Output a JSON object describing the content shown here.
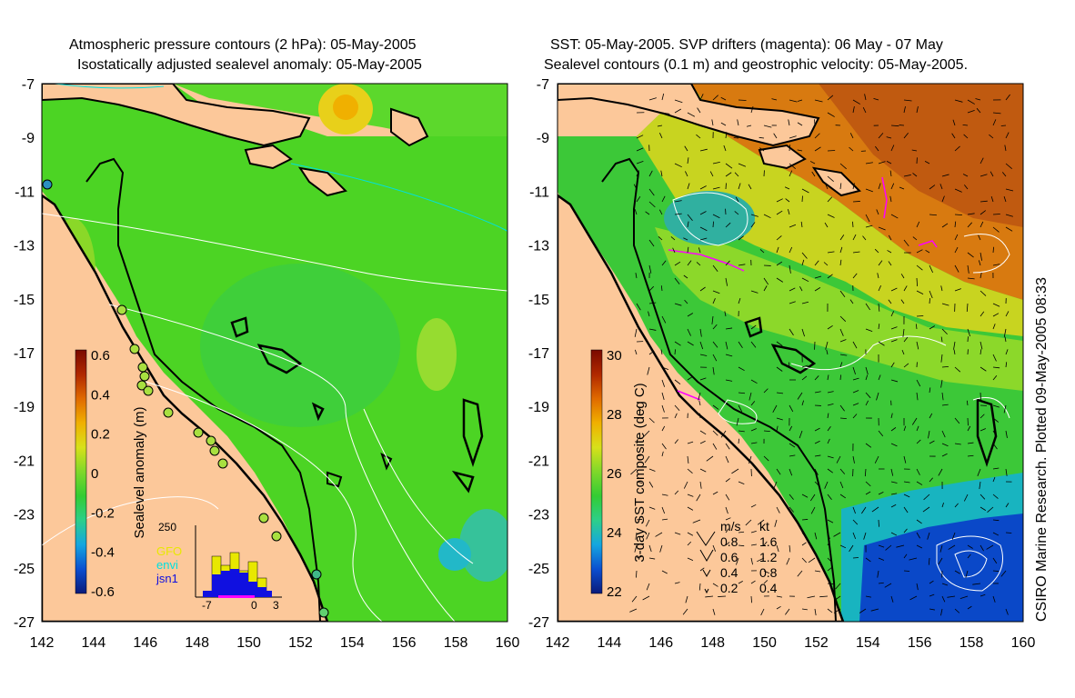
{
  "left_panel": {
    "title_line1": "Atmospheric pressure contours (2 hPa): 05-May-2005",
    "title_line2": "Isostatically adjusted sealevel anomaly: 05-May-2005",
    "colorbar": {
      "label": "Sealevel anomaly (m)",
      "ticks": [
        "0.6",
        "0.4",
        "0.2",
        "0",
        "-0.2",
        "-0.4",
        "-0.6"
      ],
      "colors": [
        "#0a1a7a",
        "#0b4fd0",
        "#15a6e0",
        "#2ccf8a",
        "#33cc33",
        "#7fd82a",
        "#d8e01a",
        "#f0b000",
        "#e06a00",
        "#b02800",
        "#7a0a00"
      ]
    },
    "inset": {
      "ymax_label": "250",
      "legend": [
        "GFO",
        "envi",
        "jsn1"
      ],
      "legend_colors": [
        "#e8e800",
        "#00e0e0",
        "#1010e0"
      ],
      "x_labels": [
        "-7",
        "0",
        "3"
      ]
    }
  },
  "right_panel": {
    "title_line1": "SST: 05-May-2005. SVP drifters (magenta): 06 May - 07 May",
    "title_line2": "Sealevel contours (0.1 m) and geostrophic velocity: 05-May-2005.",
    "colorbar": {
      "label": "3-day SST composite (deg C)",
      "ticks": [
        "30",
        "28",
        "26",
        "24",
        "22"
      ],
      "colors": [
        "#0a1a7a",
        "#0b4fd0",
        "#15a6e0",
        "#2ccf8a",
        "#33cc33",
        "#7fd82a",
        "#d8e01a",
        "#f0b000",
        "#e06a00",
        "#b02800",
        "#7a0a00"
      ]
    },
    "velocity_legend": {
      "header_ms": "m/s",
      "header_kt": "kt",
      "rows": [
        {
          "ms": "0.8",
          "kt": "1.6"
        },
        {
          "ms": "0.6",
          "kt": "1.2"
        },
        {
          "ms": "0.4",
          "kt": "0.8"
        },
        {
          "ms": "0.2",
          "kt": "0.4"
        }
      ]
    },
    "credit": "CSIRO Marine Research. Plotted 09-May-2005 08:33"
  },
  "axes": {
    "y_labels": [
      "-7",
      "-9",
      "-11",
      "-13",
      "-15",
      "-17",
      "-19",
      "-21",
      "-23",
      "-25",
      "-27"
    ],
    "x_labels": [
      "142",
      "144",
      "146",
      "148",
      "150",
      "152",
      "154",
      "156",
      "158",
      "160"
    ]
  },
  "colors": {
    "land": "#fcc89a",
    "sea_green": "#4cd424",
    "coast": "#000000"
  }
}
